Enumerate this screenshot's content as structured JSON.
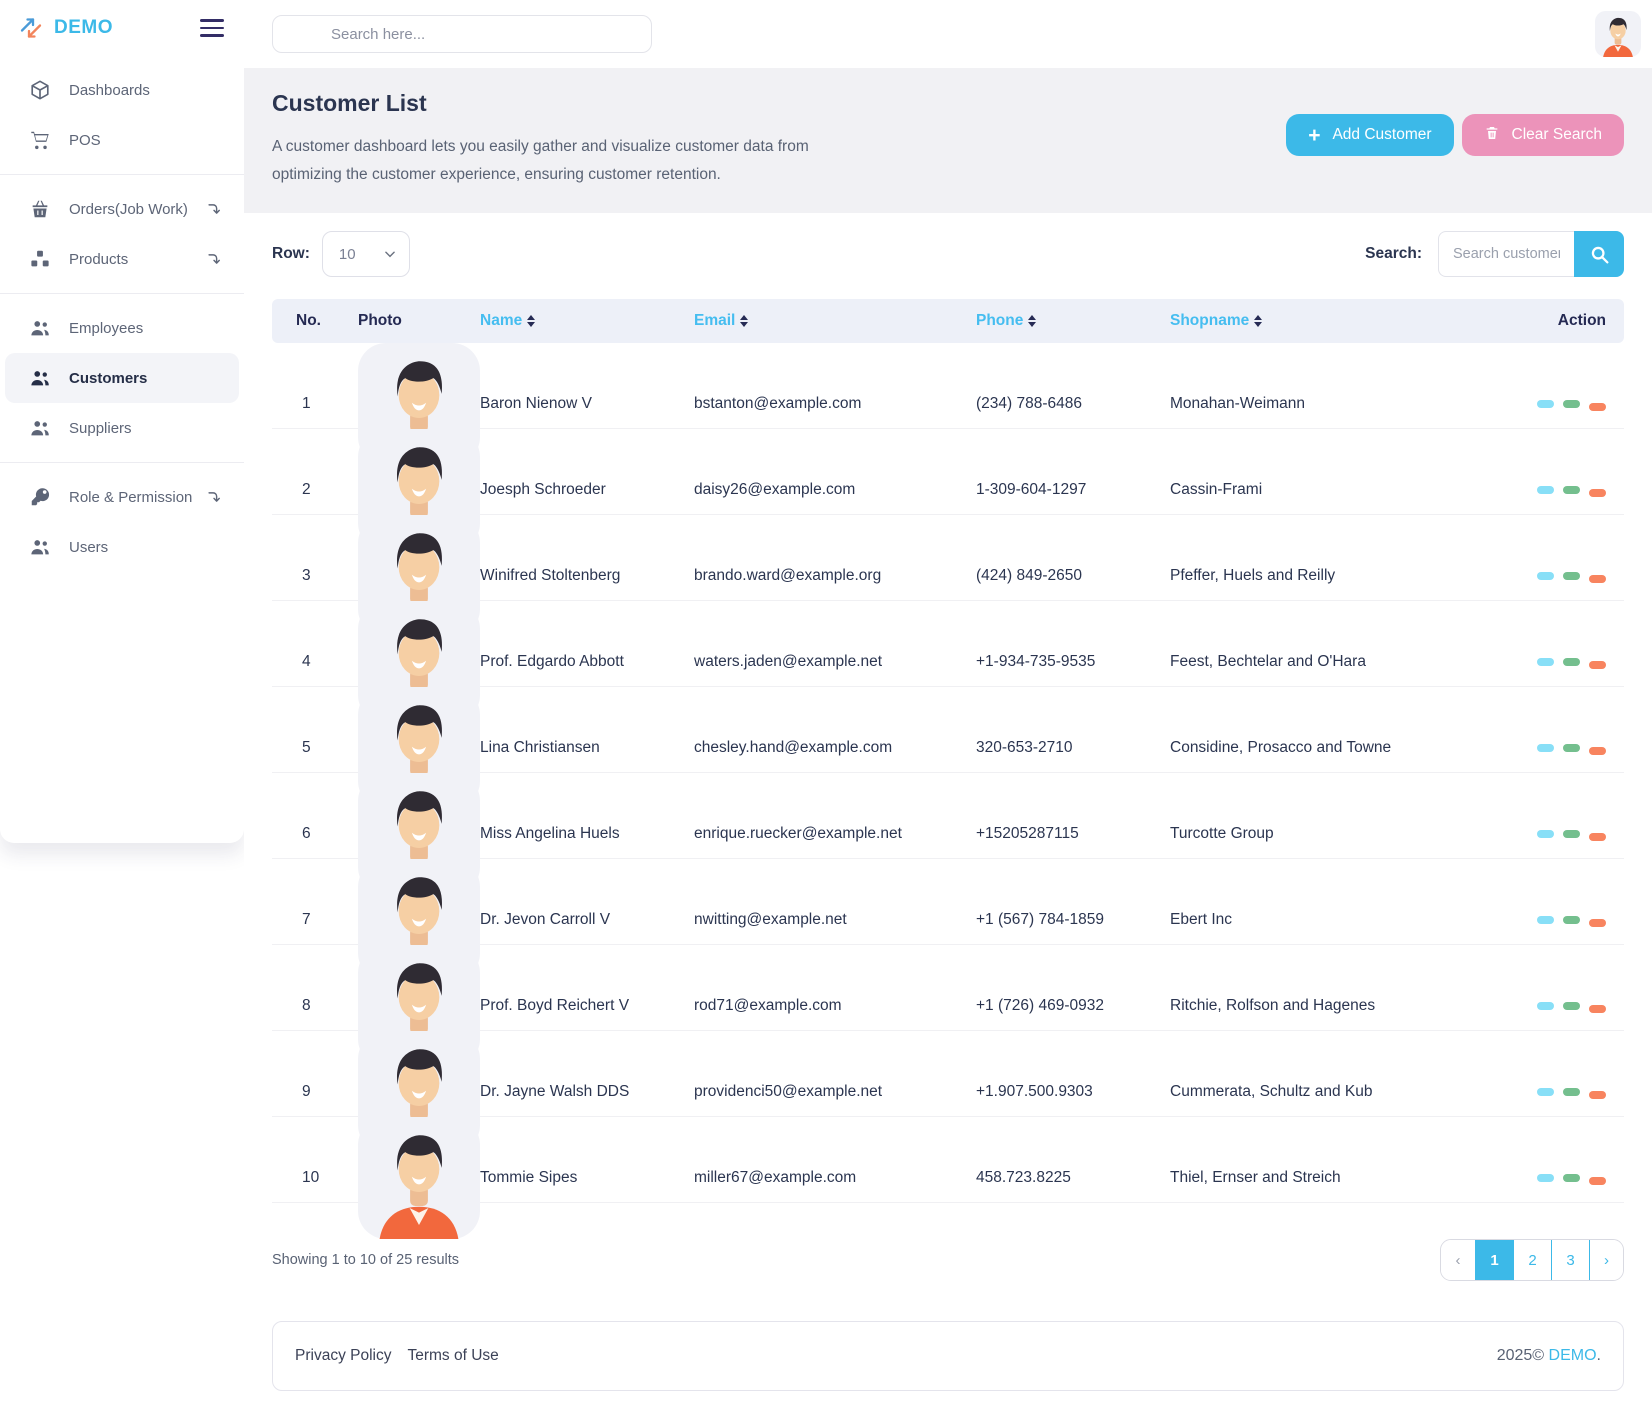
{
  "colors": {
    "accent": "#3cb9e8",
    "pink": "#ec93ba",
    "pill_view": "#88dff7",
    "pill_edit": "#74bf8e",
    "pill_delete": "#f8845f",
    "header_bg": "#edf0f8"
  },
  "sidebar": {
    "logo_text": "DEMO",
    "groups": [
      {
        "items": [
          {
            "label": "Dashboards",
            "icon": "cube-icon",
            "submenu": false,
            "active": false
          },
          {
            "label": "POS",
            "icon": "cart-icon",
            "submenu": false,
            "active": false
          }
        ]
      },
      {
        "items": [
          {
            "label": "Orders(Job Work)",
            "icon": "basket-icon",
            "submenu": true,
            "active": false
          },
          {
            "label": "Products",
            "icon": "boxes-icon",
            "submenu": true,
            "active": false
          }
        ]
      },
      {
        "items": [
          {
            "label": "Employees",
            "icon": "users-icon",
            "submenu": false,
            "active": false
          },
          {
            "label": "Customers",
            "icon": "users-icon",
            "submenu": false,
            "active": true
          },
          {
            "label": "Suppliers",
            "icon": "users-icon",
            "submenu": false,
            "active": false
          }
        ]
      },
      {
        "items": [
          {
            "label": "Role & Permission",
            "icon": "key-icon",
            "submenu": true,
            "active": false
          },
          {
            "label": "Users",
            "icon": "users-icon",
            "submenu": false,
            "active": false
          }
        ]
      }
    ]
  },
  "topbar": {
    "search_placeholder": "Search here..."
  },
  "page": {
    "title": "Customer List",
    "description": "A customer dashboard lets you easily gather and visualize customer data from optimizing the customer experience, ensuring customer retention.",
    "add_button": "Add Customer",
    "clear_button": "Clear Search"
  },
  "controls": {
    "row_label": "Row:",
    "row_value": "10",
    "search_label": "Search:",
    "search_placeholder": "Search customer"
  },
  "table": {
    "columns": [
      {
        "label": "No.",
        "sortable": false
      },
      {
        "label": "Photo",
        "sortable": false
      },
      {
        "label": "Name",
        "sortable": true
      },
      {
        "label": "Email",
        "sortable": true
      },
      {
        "label": "Phone",
        "sortable": true
      },
      {
        "label": "Shopname",
        "sortable": true
      },
      {
        "label": "Action",
        "sortable": false
      }
    ],
    "rows": [
      {
        "no": "1",
        "name": "Baron Nienow V",
        "email": "bstanton@example.com",
        "phone": "(234) 788-6486",
        "shopname": "Monahan-Weimann"
      },
      {
        "no": "2",
        "name": "Joesph Schroeder",
        "email": "daisy26@example.com",
        "phone": "1-309-604-1297",
        "shopname": "Cassin-Frami"
      },
      {
        "no": "3",
        "name": "Winifred Stoltenberg",
        "email": "brando.ward@example.org",
        "phone": "(424) 849-2650",
        "shopname": "Pfeffer, Huels and Reilly"
      },
      {
        "no": "4",
        "name": "Prof. Edgardo Abbott",
        "email": "waters.jaden@example.net",
        "phone": "+1-934-735-9535",
        "shopname": "Feest, Bechtelar and O'Hara"
      },
      {
        "no": "5",
        "name": "Lina Christiansen",
        "email": "chesley.hand@example.com",
        "phone": "320-653-2710",
        "shopname": "Considine, Prosacco and Towne"
      },
      {
        "no": "6",
        "name": "Miss Angelina Huels",
        "email": "enrique.ruecker@example.net",
        "phone": "+15205287115",
        "shopname": "Turcotte Group"
      },
      {
        "no": "7",
        "name": "Dr. Jevon Carroll V",
        "email": "nwitting@example.net",
        "phone": "+1 (567) 784-1859",
        "shopname": "Ebert Inc"
      },
      {
        "no": "8",
        "name": "Prof. Boyd Reichert V",
        "email": "rod71@example.com",
        "phone": "+1 (726) 469-0932",
        "shopname": "Ritchie, Rolfson and Hagenes"
      },
      {
        "no": "9",
        "name": "Dr. Jayne Walsh DDS",
        "email": "providenci50@example.net",
        "phone": "+1.907.500.9303",
        "shopname": "Cummerata, Schultz and Kub"
      },
      {
        "no": "10",
        "name": "Tommie Sipes",
        "email": "miller67@example.com",
        "phone": "458.723.8225",
        "shopname": "Thiel, Ernser and Streich"
      }
    ]
  },
  "pagination": {
    "summary": "Showing 1 to 10 of 25 results",
    "prev": "‹",
    "next": "›",
    "pages": [
      "1",
      "2",
      "3"
    ],
    "active_page": "1"
  },
  "footer": {
    "links": [
      "Privacy Policy",
      "Terms of Use"
    ],
    "year": "2025©",
    "brand": "DEMO",
    "dot": "."
  }
}
